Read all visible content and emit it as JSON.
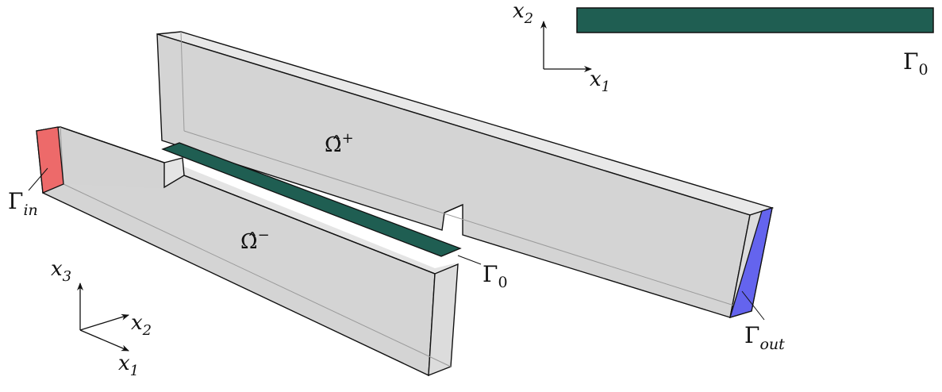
{
  "colors": {
    "box_fill": "#d4d4d4",
    "box_side": "#e4e4e4",
    "box_edge": "#111111",
    "interface": "#1f5e52",
    "inlet": "#ee6464",
    "outlet": "#6464ee"
  },
  "top_axes": {
    "x1": "x",
    "x1_sub": "1",
    "x2": "x",
    "x2_sub": "2"
  },
  "top_strip": {
    "label": "Γ",
    "label_sub": "0"
  },
  "upper_domain": {
    "label": "Ω̂",
    "sup": "+"
  },
  "lower_domain": {
    "label": "Ω̂",
    "sup": "−"
  },
  "inlet": {
    "label": "Γ",
    "label_sub": "in"
  },
  "outlet": {
    "label": "Γ",
    "label_sub": "out"
  },
  "interface": {
    "label": "Γ",
    "label_sub": "0"
  },
  "bottom_axes": {
    "x1": "x",
    "x1_sub": "1",
    "x2": "x",
    "x2_sub": "2",
    "x3": "x",
    "x3_sub": "3"
  }
}
